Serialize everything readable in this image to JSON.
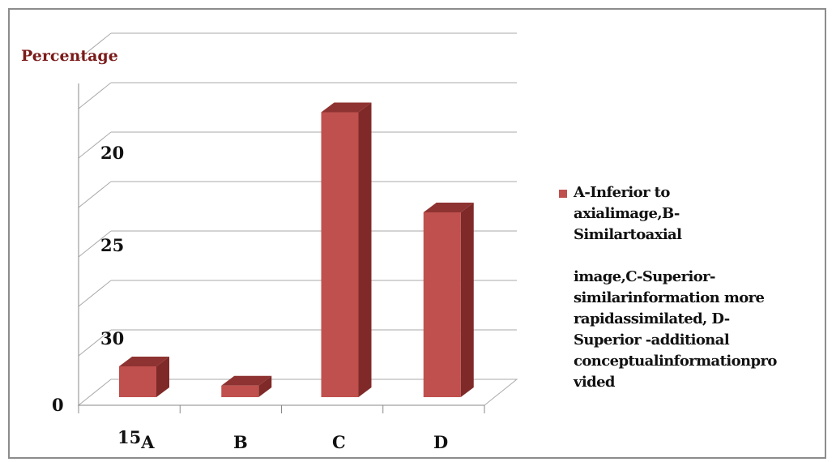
{
  "chart_data": {
    "type": "bar",
    "title": "Percentage",
    "categories": [
      "A",
      "B",
      "C",
      "D"
    ],
    "values": [
      4,
      1.5,
      37,
      24
    ],
    "y_tick_labels": [
      "0",
      "20",
      "25",
      "30"
    ],
    "x_tick_labels": [
      "15A",
      "B",
      "C",
      "D"
    ],
    "series": [
      {
        "name_lines": [
          "A-Inferior to",
          "axialimage,B-",
          "Similartoaxial",
          "image,C-Superior-",
          "similarinformation more",
          "rapidassimilated, D-",
          "Superior -additional",
          "conceptualinformationpro",
          "vided"
        ],
        "color": "#c0504d"
      }
    ],
    "style": "3d-column",
    "gridlines": true,
    "legend_position": "right"
  }
}
